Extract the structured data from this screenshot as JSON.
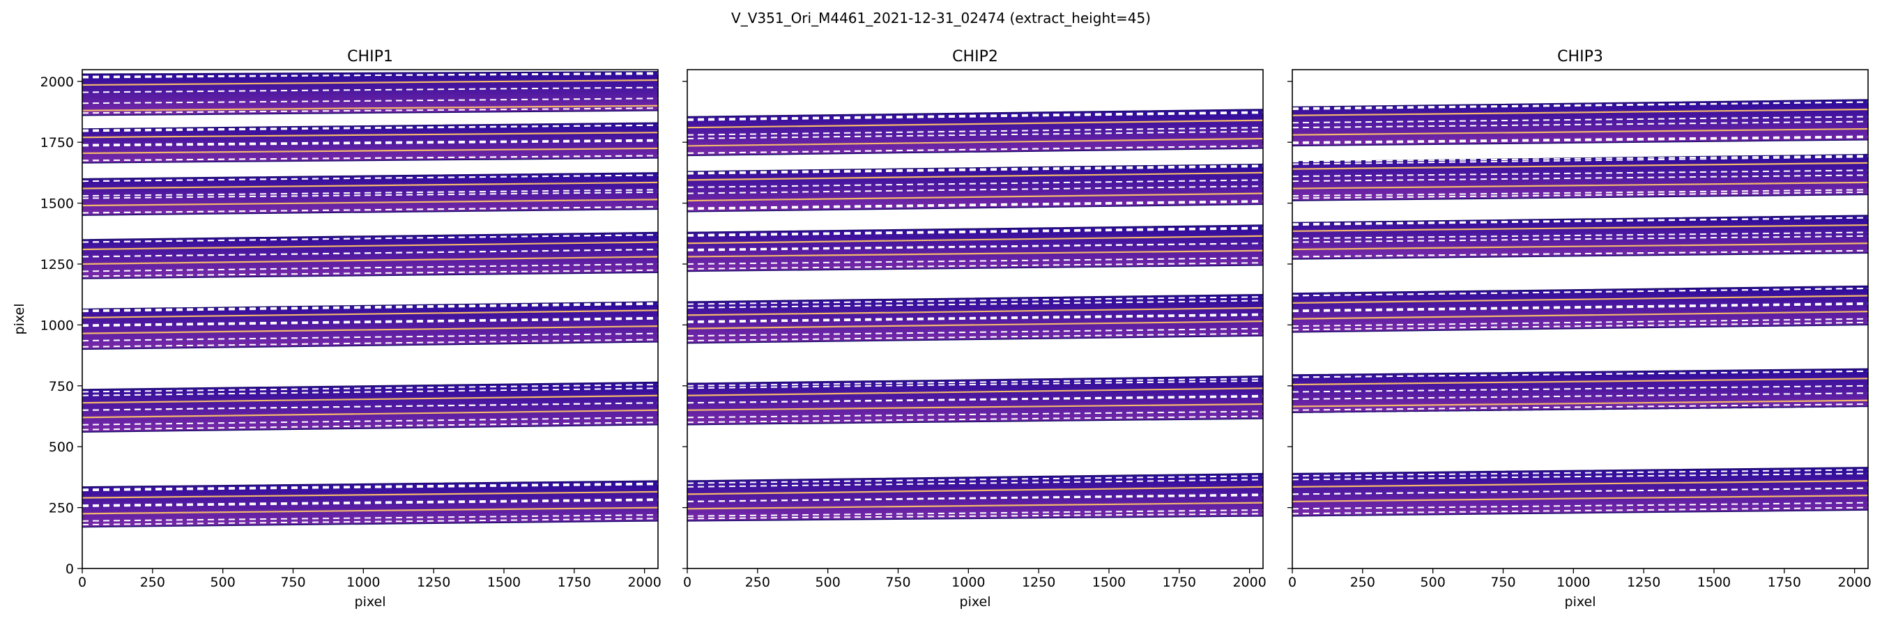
{
  "figure": {
    "suptitle": "V_V351_Ori_M4461_2021-12-31_02474  (extract_height=45)"
  },
  "colors": {
    "background": "#ffffff",
    "frame": "#000000",
    "order_fill_top": "#2a0a9a",
    "order_fill_bottom": "#7a2aa8",
    "order_edge": "#1a0a6a",
    "trace_line": "#f5b86a",
    "extract_line": "#ffffff"
  },
  "chart_data": [
    {
      "type": "heatmap",
      "title": "CHIP1",
      "xlabel": "pixel",
      "ylabel": "pixel",
      "xlim": [
        0,
        2048
      ],
      "ylim": [
        0,
        2048
      ],
      "xticks": [
        0,
        250,
        500,
        750,
        1000,
        1250,
        1500,
        1750,
        2000
      ],
      "yticks": [
        0,
        250,
        500,
        750,
        1000,
        1250,
        1500,
        1750,
        2000
      ],
      "grid": false,
      "orders": [
        {
          "bottom": [
            170,
            195
          ],
          "top": [
            335,
            360
          ],
          "traces": [
            [
              225,
              250
            ],
            [
              290,
              315
            ]
          ]
        },
        {
          "bottom": [
            560,
            590
          ],
          "top": [
            735,
            765
          ],
          "traces": [
            [
              620,
              650
            ],
            [
              680,
              710
            ]
          ]
        },
        {
          "bottom": [
            900,
            930
          ],
          "top": [
            1065,
            1095
          ],
          "traces": [
            [
              965,
              995
            ],
            [
              1030,
              1060
            ]
          ]
        },
        {
          "bottom": [
            1190,
            1215
          ],
          "top": [
            1350,
            1380
          ],
          "traces": [
            [
              1250,
              1280
            ],
            [
              1310,
              1340
            ]
          ]
        },
        {
          "bottom": [
            1450,
            1475
          ],
          "top": [
            1600,
            1625
          ],
          "traces": [
            [
              1490,
              1515
            ],
            [
              1560,
              1585
            ]
          ]
        },
        {
          "bottom": [
            1665,
            1685
          ],
          "top": [
            1805,
            1830
          ],
          "traces": [
            [
              1705,
              1725
            ],
            [
              1770,
              1790
            ]
          ]
        },
        {
          "bottom": [
            1860,
            1880
          ],
          "top": [
            2030,
            2040
          ],
          "traces": [
            [
              1880,
              1900
            ],
            [
              1985,
              2005
            ]
          ]
        }
      ]
    },
    {
      "type": "heatmap",
      "title": "CHIP2",
      "xlabel": "pixel",
      "ylabel": "",
      "xlim": [
        0,
        2048
      ],
      "ylim": [
        0,
        2048
      ],
      "xticks": [
        0,
        250,
        500,
        750,
        1000,
        1250,
        1500,
        1750,
        2000
      ],
      "yticks": [
        0,
        250,
        500,
        750,
        1000,
        1250,
        1500,
        1750,
        2000
      ],
      "grid": false,
      "orders": [
        {
          "bottom": [
            195,
            215
          ],
          "top": [
            360,
            390
          ],
          "traces": [
            [
              245,
              270
            ],
            [
              305,
              335
            ]
          ]
        },
        {
          "bottom": [
            590,
            615
          ],
          "top": [
            760,
            790
          ],
          "traces": [
            [
              650,
              675
            ],
            [
              710,
              740
            ]
          ]
        },
        {
          "bottom": [
            925,
            955
          ],
          "top": [
            1095,
            1125
          ],
          "traces": [
            [
              985,
              1015
            ],
            [
              1040,
              1070
            ]
          ]
        },
        {
          "bottom": [
            1220,
            1245
          ],
          "top": [
            1380,
            1410
          ],
          "traces": [
            [
              1280,
              1305
            ],
            [
              1335,
              1365
            ]
          ]
        },
        {
          "bottom": [
            1465,
            1495
          ],
          "top": [
            1630,
            1660
          ],
          "traces": [
            [
              1510,
              1540
            ],
            [
              1595,
              1625
            ]
          ]
        },
        {
          "bottom": [
            1695,
            1725
          ],
          "top": [
            1855,
            1885
          ],
          "traces": [
            [
              1735,
              1765
            ],
            [
              1810,
              1840
            ]
          ]
        }
      ]
    },
    {
      "type": "heatmap",
      "title": "CHIP3",
      "xlabel": "pixel",
      "ylabel": "",
      "xlim": [
        0,
        2048
      ],
      "ylim": [
        0,
        2048
      ],
      "xticks": [
        0,
        250,
        500,
        750,
        1000,
        1250,
        1500,
        1750,
        2000
      ],
      "yticks": [
        0,
        250,
        500,
        750,
        1000,
        1250,
        1500,
        1750,
        2000
      ],
      "grid": false,
      "orders": [
        {
          "bottom": [
            215,
            240
          ],
          "top": [
            390,
            415
          ],
          "traces": [
            [
              275,
              300
            ],
            [
              335,
              360
            ]
          ]
        },
        {
          "bottom": [
            640,
            665
          ],
          "top": [
            795,
            820
          ],
          "traces": [
            [
              665,
              690
            ],
            [
              755,
              780
            ]
          ]
        },
        {
          "bottom": [
            970,
            1000
          ],
          "top": [
            1130,
            1160
          ],
          "traces": [
            [
              1025,
              1055
            ],
            [
              1090,
              1120
            ]
          ]
        },
        {
          "bottom": [
            1270,
            1295
          ],
          "top": [
            1420,
            1450
          ],
          "traces": [
            [
              1310,
              1335
            ],
            [
              1385,
              1410
            ]
          ]
        },
        {
          "bottom": [
            1510,
            1535
          ],
          "top": [
            1670,
            1700
          ],
          "traces": [
            [
              1560,
              1585
            ],
            [
              1640,
              1665
            ]
          ]
        },
        {
          "bottom": [
            1735,
            1760
          ],
          "top": [
            1895,
            1925
          ],
          "traces": [
            [
              1780,
              1805
            ],
            [
              1860,
              1885
            ]
          ]
        }
      ]
    }
  ]
}
